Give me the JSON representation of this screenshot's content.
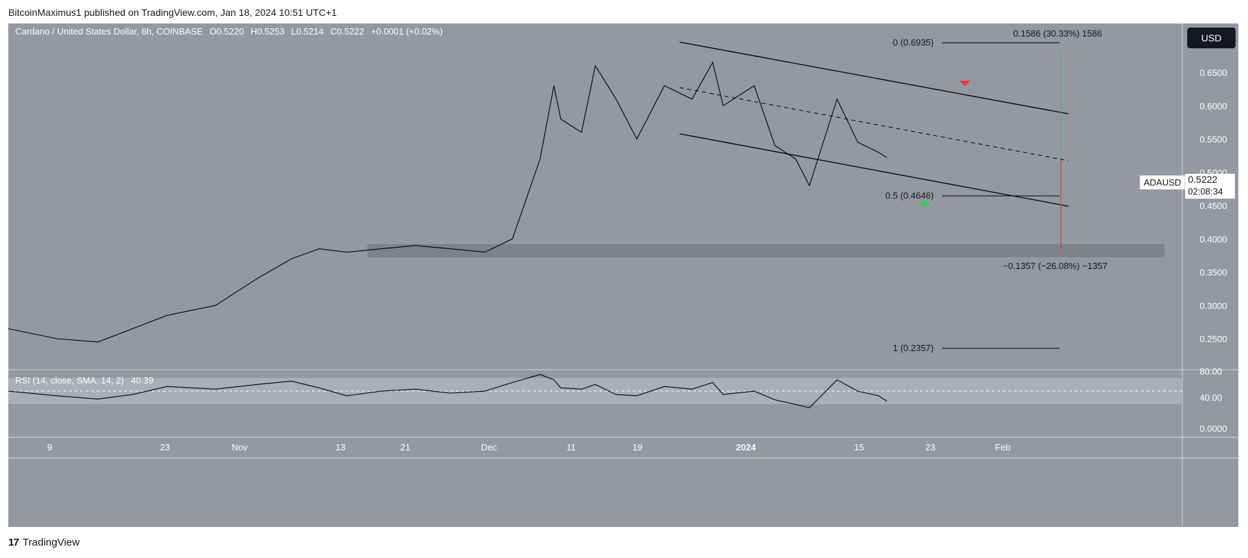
{
  "publisher": "BitcoinMaximus1 published on TradingView.com, Jan 18, 2024 10:51 UTC+1",
  "footer_brand": "TradingView",
  "currency_button": "USD",
  "symbol_tag": "ADAUSD",
  "last_price": "0.5222",
  "countdown": "02:08:34",
  "legend": {
    "title": "Cardano / United States Dollar, 6h, COINBASE",
    "o_label": "O",
    "o": "0.5220",
    "h_label": "H",
    "h": "0.5253",
    "l_label": "L",
    "l": "0.5214",
    "c_label": "C",
    "c": "0.5222",
    "change": "+0.0001 (+0.02%)"
  },
  "rsi": {
    "label": "RSI (14, close, SMA, 14, 2)",
    "value": "40.39",
    "ticks": [
      "80.00",
      "40.00",
      "0.0000"
    ],
    "band": [
      30,
      70
    ]
  },
  "fib": {
    "f0": "0 (0.6935)",
    "f05": "0.5 (0.4646)",
    "f1": "1 (0.2357)"
  },
  "measure": {
    "up": "0.1586 (30.33%) 1586",
    "down": "−0.1357 (−26.08%) −1357"
  },
  "colors": {
    "up_arrow": "#f23645",
    "down_arrow": "#26d44a",
    "measure_up": "#4caf50",
    "measure_down": "#e04040"
  },
  "chart_data": {
    "type": "line",
    "price_axis_ticks": [
      "0.6500",
      "0.6000",
      "0.5500",
      "0.5000",
      "0.4500",
      "0.4000",
      "0.3500",
      "0.3000",
      "0.2500"
    ],
    "time_axis_ticks": [
      "9",
      "23",
      "Nov",
      "13",
      "21",
      "Dec",
      "11",
      "19",
      "2024",
      "15",
      "23",
      "Feb"
    ],
    "price_ylim": [
      0.22,
      0.7
    ],
    "x_points": [
      "Oct 4",
      "Oct 12",
      "Oct 19",
      "Oct 24",
      "Oct 28",
      "Nov 1",
      "Nov 5",
      "Nov 9",
      "Nov 12",
      "Nov 16",
      "Nov 20",
      "Nov 24",
      "Nov 28",
      "Dec 2",
      "Dec 5",
      "Dec 8",
      "Dec 9",
      "Dec 10",
      "Dec 12",
      "Dec 14",
      "Dec 16",
      "Dec 18",
      "Dec 20",
      "Dec 23",
      "Dec 27",
      "Dec 29",
      "Jan 1",
      "Jan 3",
      "Jan 5",
      "Jan 8",
      "Jan 11",
      "Jan 13",
      "Jan 16",
      "Jan 18"
    ],
    "series": [
      {
        "values": [
          0.265,
          0.25,
          0.245,
          0.265,
          0.285,
          0.3,
          0.34,
          0.37,
          0.385,
          0.38,
          0.385,
          0.39,
          0.385,
          0.38,
          0.4,
          0.52,
          0.63,
          0.58,
          0.56,
          0.66,
          0.61,
          0.55,
          0.63,
          0.61,
          0.665,
          0.6,
          0.63,
          0.54,
          0.52,
          0.48,
          0.61,
          0.545,
          0.53,
          0.522
        ]
      }
    ],
    "rsi_values": [
      55,
      48,
      43,
      50,
      62,
      58,
      65,
      70,
      60,
      48,
      55,
      58,
      52,
      55,
      68,
      80,
      72,
      60,
      58,
      65,
      50,
      48,
      62,
      58,
      68,
      50,
      55,
      42,
      35,
      30,
      72,
      55,
      48,
      40
    ],
    "support_zone": [
      0.375,
      0.395
    ]
  }
}
